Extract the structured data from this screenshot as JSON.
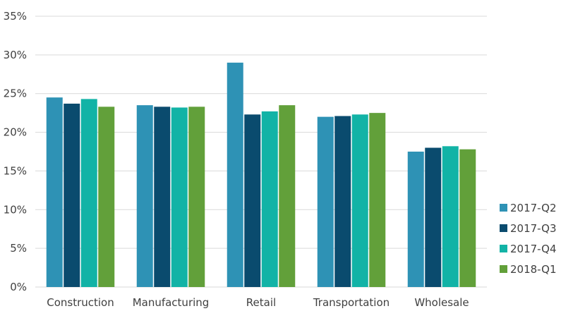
{
  "chart_data": {
    "type": "bar",
    "categories": [
      "Construction",
      "Manufacturing",
      "Retail",
      "Transportation",
      "Wholesale"
    ],
    "series": [
      {
        "name": "2017-Q2",
        "color": "#2e92b5",
        "values": [
          24.5,
          23.5,
          29.0,
          22.0,
          17.5
        ]
      },
      {
        "name": "2017-Q3",
        "color": "#0a4b6e",
        "values": [
          23.7,
          23.3,
          22.3,
          22.1,
          18.0
        ]
      },
      {
        "name": "2017-Q4",
        "color": "#12b3a6",
        "values": [
          24.3,
          23.2,
          22.7,
          22.3,
          18.2
        ]
      },
      {
        "name": "2018-Q1",
        "color": "#62a03a",
        "values": [
          23.3,
          23.3,
          23.5,
          22.5,
          17.8
        ]
      }
    ],
    "yticks": [
      "0%",
      "5%",
      "10%",
      "15%",
      "20%",
      "25%",
      "30%",
      "35%"
    ],
    "ylim": [
      0,
      35
    ],
    "ytick_step": 5,
    "grid": true,
    "legend_position": "right",
    "title": "",
    "xlabel": "",
    "ylabel": ""
  }
}
